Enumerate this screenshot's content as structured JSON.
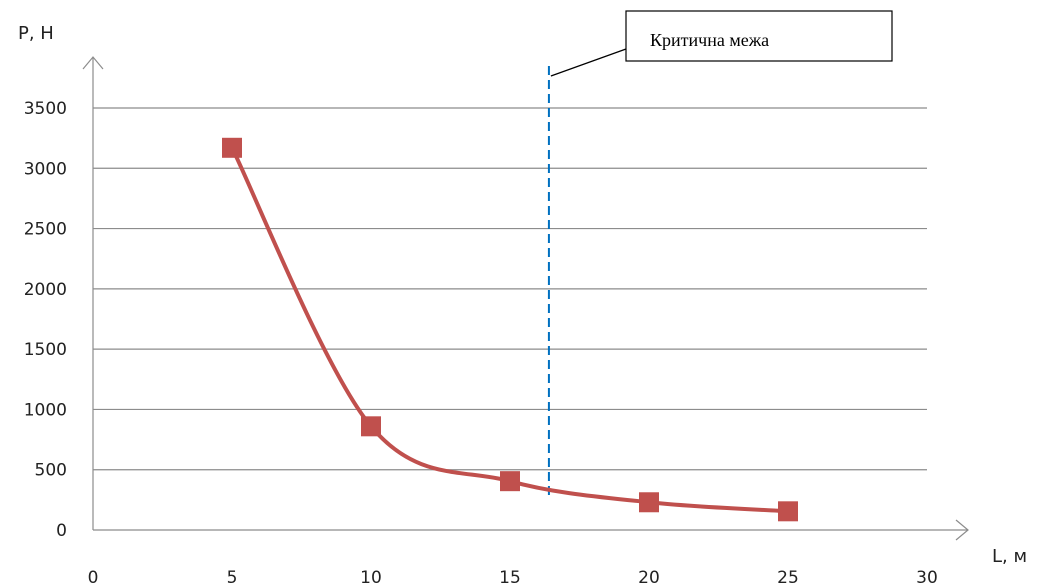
{
  "chart_data": {
    "type": "line",
    "title": "",
    "xlabel": "L, м",
    "ylabel": "P, Н",
    "xlim": [
      0,
      30
    ],
    "ylim": [
      0,
      3500
    ],
    "x_ticks": [
      0,
      5,
      10,
      15,
      20,
      25,
      30
    ],
    "y_ticks": [
      0,
      500,
      1000,
      1500,
      2000,
      2500,
      3000,
      3500
    ],
    "grid": "horizontal",
    "series": [
      {
        "x": [
          5,
          10,
          15,
          20,
          25
        ],
        "values": [
          3170,
          860,
          405,
          230,
          155
        ],
        "color": "#c0504d",
        "marker": "square",
        "smooth": true
      }
    ],
    "reference_line": {
      "x": 16.4,
      "color": "#0070c0",
      "style": "dashed"
    },
    "annotation": {
      "text": "Критична межа"
    }
  }
}
